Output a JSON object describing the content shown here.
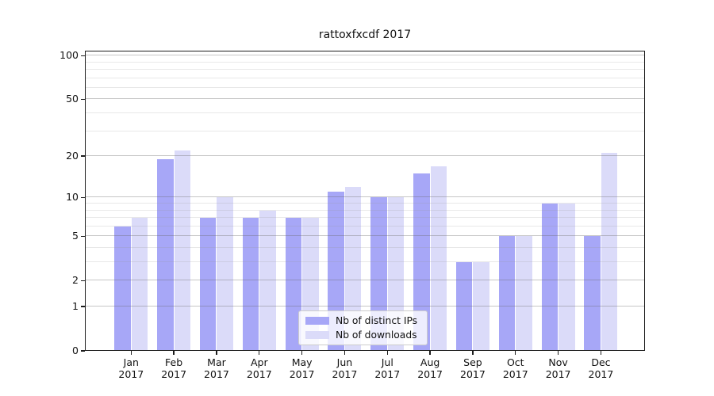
{
  "title": "rattoxfxcdf 2017",
  "chart_data": {
    "type": "bar",
    "title": "rattoxfxcdf 2017",
    "categories": [
      "Jan",
      "Feb",
      "Mar",
      "Apr",
      "May",
      "Jun",
      "Jul",
      "Aug",
      "Sep",
      "Oct",
      "Nov",
      "Dec"
    ],
    "year": "2017",
    "series": [
      {
        "name": "Nb of distinct IPs",
        "color": "#a7a7f7",
        "values": [
          6,
          19,
          7,
          7,
          7,
          11,
          10,
          15,
          3,
          5,
          9,
          5
        ]
      },
      {
        "name": "Nb of downloads",
        "color": "#dbdbf9",
        "values": [
          7,
          22,
          10,
          8,
          7,
          12,
          10,
          17,
          3,
          5,
          9,
          21
        ]
      }
    ],
    "xlabel": "",
    "ylabel": "",
    "yscale": "log1p",
    "ylim": [
      0,
      108
    ],
    "y_major_ticks": [
      100,
      50,
      20,
      10,
      5,
      2,
      1,
      0
    ],
    "y_minor_gridlines": [
      3,
      4,
      6,
      7,
      8,
      9,
      30,
      40,
      60,
      70,
      80,
      90
    ],
    "grid": true,
    "legend_position": "lower center"
  }
}
